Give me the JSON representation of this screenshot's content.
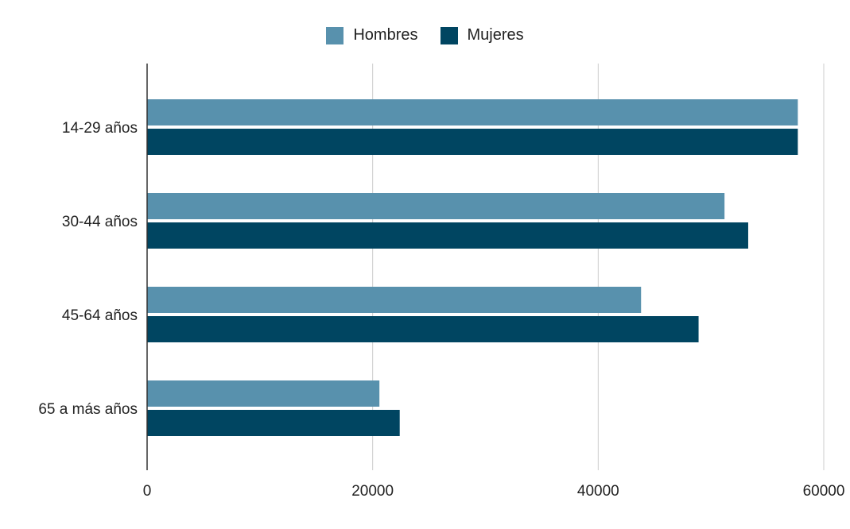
{
  "chart_data": {
    "type": "bar",
    "orientation": "horizontal",
    "categories": [
      "14-29 años",
      "30-44 años",
      "45-64 años",
      "65 a más años"
    ],
    "series": [
      {
        "name": "Hombres",
        "color": "#5891ad",
        "values": [
          57700,
          51200,
          43800,
          20600
        ]
      },
      {
        "name": "Mujeres",
        "color": "#004561",
        "values": [
          57700,
          53300,
          48900,
          22400
        ]
      }
    ],
    "xlim": [
      0,
      60000
    ],
    "xticks": [
      "0",
      "20000",
      "40000",
      "60000"
    ],
    "grid": true,
    "legend_position": "top-center",
    "title": "",
    "xlabel": "",
    "ylabel": ""
  }
}
